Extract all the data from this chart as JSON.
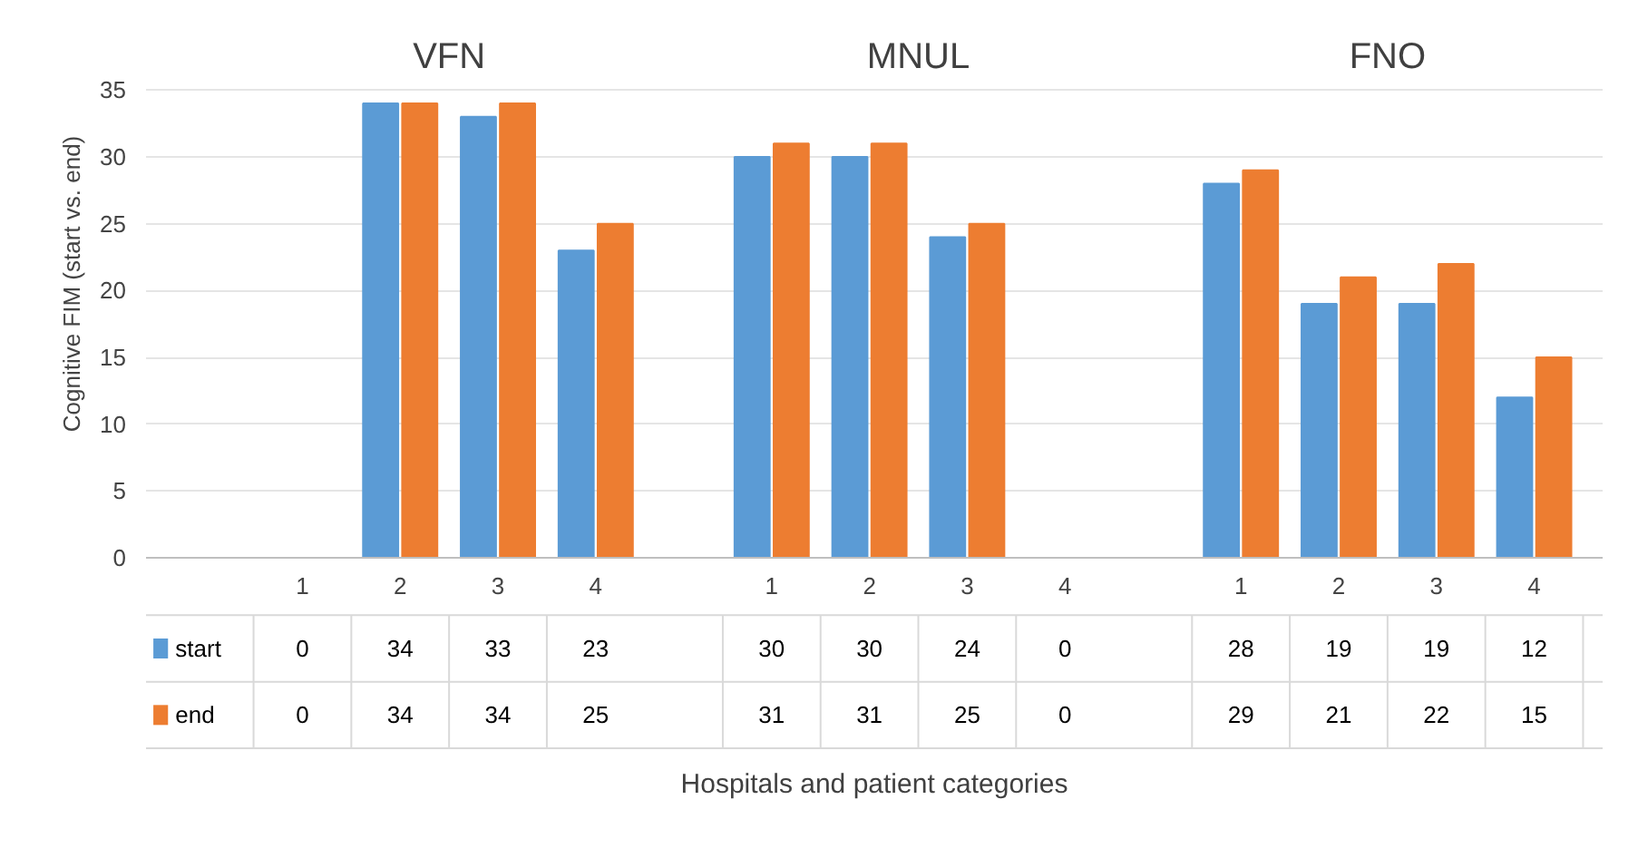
{
  "chart_data": {
    "type": "bar",
    "ylabel": "Cognitive FIM (start vs. end)",
    "annotations": [
      "VFN",
      "MNUL",
      "FNO",
      "Hospitals and patient categories"
    ],
    "categories": [
      "1",
      "2",
      "3",
      "4",
      "1",
      "2",
      "3",
      "4",
      "1",
      "2",
      "3",
      "4"
    ],
    "series": [
      {
        "name": "start",
        "color": "#5b9bd5",
        "values": [
          0,
          34,
          33,
          23,
          30,
          30,
          24,
          0,
          28,
          19,
          19,
          12
        ]
      },
      {
        "name": "end",
        "color": "#ed7d31",
        "values": [
          0,
          34,
          34,
          25,
          31,
          31,
          25,
          0,
          29,
          21,
          22,
          15
        ]
      }
    ],
    "ylim": [
      0,
      35
    ],
    "yticks": [
      0,
      5,
      10,
      15,
      20,
      25,
      30,
      35
    ],
    "grid": "y",
    "legend": "bottom",
    "data_labels": true
  }
}
